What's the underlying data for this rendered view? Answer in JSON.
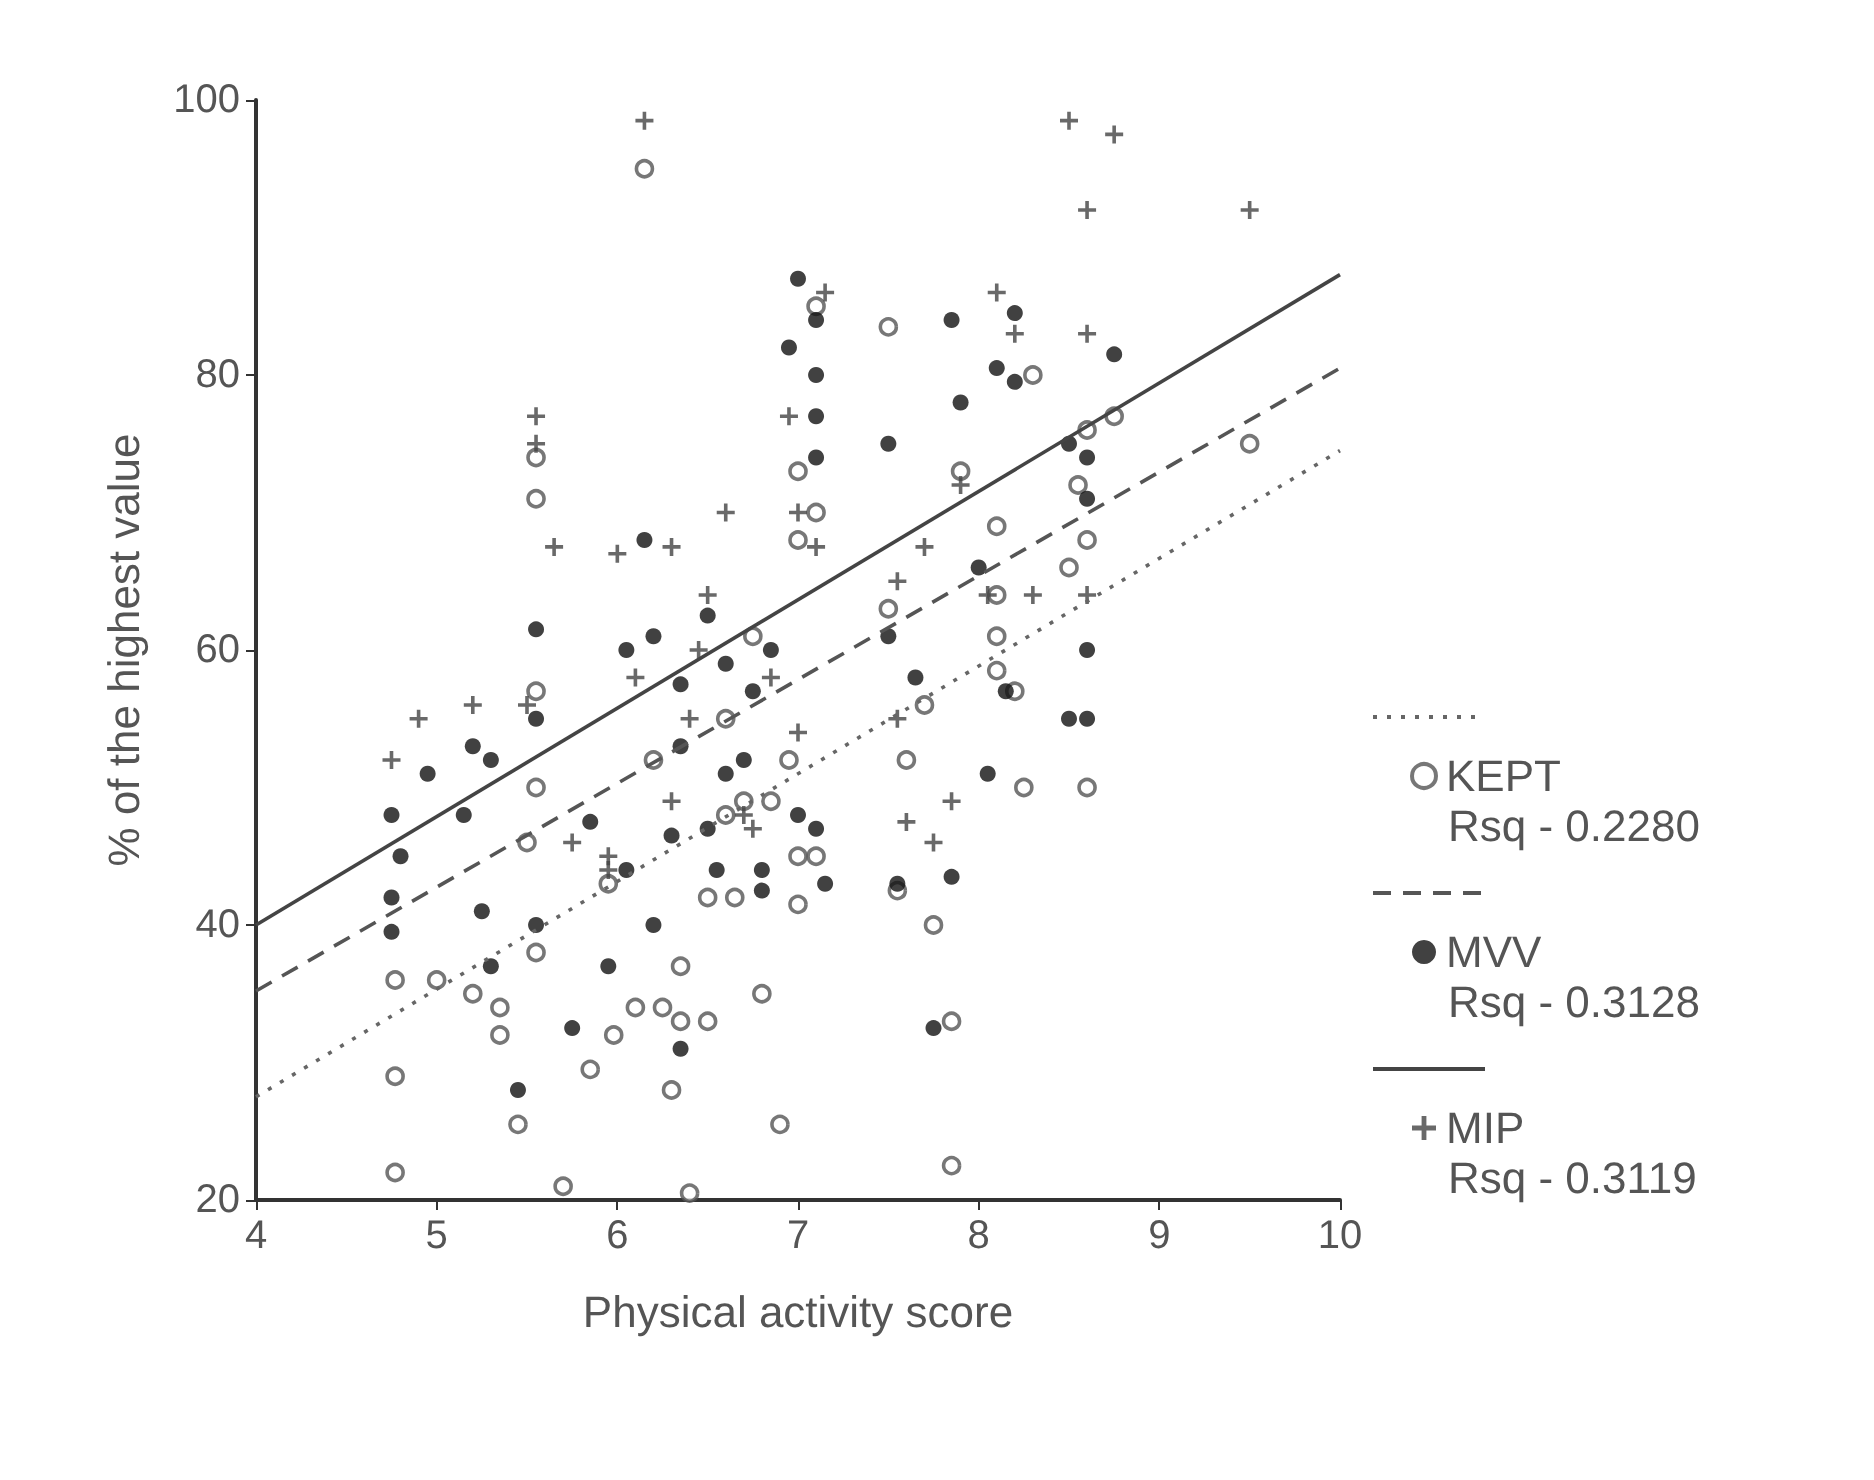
{
  "chart_data": {
    "type": "scatter",
    "xlabel": "Physical activity score",
    "ylabel": "% of the highest value",
    "xlim": [
      4,
      10
    ],
    "xticks": [
      4,
      5,
      6,
      7,
      8,
      9,
      10
    ],
    "ylim": [
      20,
      100
    ],
    "yticks": [
      20,
      40,
      60,
      80,
      100
    ],
    "grid": false,
    "legend": "right",
    "annotations": [
      "Rsq - 0.2280",
      "Rsq - 0.3128",
      "Rsq - 0.3119"
    ],
    "series": [
      {
        "name": "KEPT",
        "marker": "circle",
        "color": "#555555",
        "x": [
          4.77,
          4.77,
          4.77,
          5.0,
          5.2,
          5.35,
          5.35,
          5.45,
          5.55,
          5.5,
          5.55,
          5.55,
          5.55,
          5.55,
          5.7,
          5.85,
          5.95,
          5.98,
          6.1,
          6.15,
          6.2,
          6.25,
          6.3,
          6.35,
          6.35,
          6.4,
          6.5,
          6.5,
          6.6,
          6.6,
          6.65,
          6.7,
          6.75,
          6.8,
          6.85,
          6.9,
          6.95,
          7.0,
          7.0,
          7.0,
          7.0,
          7.1,
          7.1,
          7.1,
          7.5,
          7.5,
          7.55,
          7.6,
          7.7,
          7.75,
          7.85,
          7.85,
          7.9,
          8.1,
          8.1,
          8.1,
          8.1,
          8.2,
          8.25,
          8.3,
          8.5,
          8.55,
          8.6,
          8.6,
          8.6,
          8.75,
          9.5
        ],
        "values": [
          22,
          29,
          36,
          36,
          35,
          32,
          34,
          25.5,
          38,
          46,
          50,
          57,
          71,
          74,
          21,
          29.5,
          43,
          32,
          34,
          95,
          52,
          34,
          28,
          33,
          37,
          20.5,
          33,
          42,
          55,
          48,
          42,
          49,
          61,
          35,
          49,
          25.5,
          52,
          45,
          41.5,
          68,
          73,
          45,
          70,
          85,
          83.5,
          63,
          42.5,
          52,
          56,
          40,
          33,
          22.5,
          73,
          61,
          58.5,
          64,
          69,
          57,
          50,
          80,
          66,
          72,
          68,
          76,
          50,
          77,
          75
        ]
      },
      {
        "name": "MVV",
        "marker": "circle",
        "color": "#111111",
        "x": [
          4.75,
          4.75,
          4.75,
          4.8,
          4.95,
          5.15,
          5.2,
          5.25,
          5.3,
          5.3,
          5.45,
          5.55,
          5.55,
          5.55,
          5.75,
          5.85,
          5.95,
          6.05,
          6.05,
          6.15,
          6.2,
          6.2,
          6.3,
          6.35,
          6.35,
          6.35,
          6.5,
          6.5,
          6.55,
          6.6,
          6.6,
          6.7,
          6.75,
          6.8,
          6.8,
          6.85,
          6.95,
          7.0,
          7.0,
          7.1,
          7.1,
          7.1,
          7.1,
          7.1,
          7.15,
          7.5,
          7.5,
          7.55,
          7.65,
          7.75,
          7.85,
          7.85,
          7.9,
          8.0,
          8.05,
          8.1,
          8.2,
          8.2,
          8.15,
          8.5,
          8.5,
          8.6,
          8.6,
          8.6,
          8.75,
          8.6
        ],
        "values": [
          48,
          42,
          39.5,
          45,
          51,
          48,
          53,
          41,
          52,
          37,
          28,
          61.5,
          55,
          40,
          32.5,
          47.5,
          37,
          44,
          60,
          68,
          61,
          40,
          46.5,
          57.5,
          53,
          31,
          62.5,
          47,
          44,
          59,
          51,
          52,
          57,
          42.5,
          44,
          60,
          82,
          87,
          48,
          84,
          80,
          77,
          74,
          47,
          43,
          75,
          61,
          43,
          58,
          32.5,
          43.5,
          84,
          78,
          66,
          51,
          80.5,
          84.5,
          79.5,
          57,
          75,
          55,
          74,
          71,
          60,
          81.5,
          55
        ]
      },
      {
        "name": "MIP",
        "marker": "cross",
        "color": "#444444",
        "x": [
          4.75,
          4.9,
          5.2,
          5.55,
          5.55,
          5.65,
          5.5,
          5.75,
          5.95,
          6.15,
          6.0,
          6.1,
          6.3,
          6.45,
          6.5,
          6.6,
          6.4,
          6.7,
          6.75,
          6.95,
          7.0,
          7.1,
          7.15,
          7.0,
          6.85,
          7.55,
          7.55,
          7.6,
          7.7,
          7.75,
          7.85,
          7.9,
          8.1,
          8.2,
          8.5,
          8.6,
          8.6,
          8.75,
          9.5,
          8.05,
          8.3,
          8.6,
          5.95,
          6.3
        ],
        "values": [
          52,
          55,
          56,
          77,
          75,
          67.5,
          56,
          46,
          44,
          98.5,
          67,
          58,
          67.5,
          60,
          64,
          70,
          55,
          48,
          47,
          77,
          70,
          67.5,
          86,
          54,
          58,
          65,
          55,
          47.5,
          67.5,
          46,
          49,
          72,
          86,
          83,
          98.5,
          92,
          83,
          97.5,
          92,
          64,
          64,
          64,
          45,
          49
        ]
      },
      {
        "type": "line",
        "marker": "none",
        "line_style": "dotted",
        "color": "#666666",
        "x": [
          4,
          10
        ],
        "values": [
          27.5,
          74.5
        ]
      },
      {
        "type": "line",
        "marker": "none",
        "line_style": "dashed",
        "color": "#555555",
        "x": [
          4,
          10
        ],
        "values": [
          35.2,
          80.5
        ]
      },
      {
        "type": "line",
        "marker": "none",
        "line_style": "solid",
        "color": "#444444",
        "x": [
          4,
          10
        ],
        "values": [
          40,
          87.3
        ]
      }
    ]
  }
}
